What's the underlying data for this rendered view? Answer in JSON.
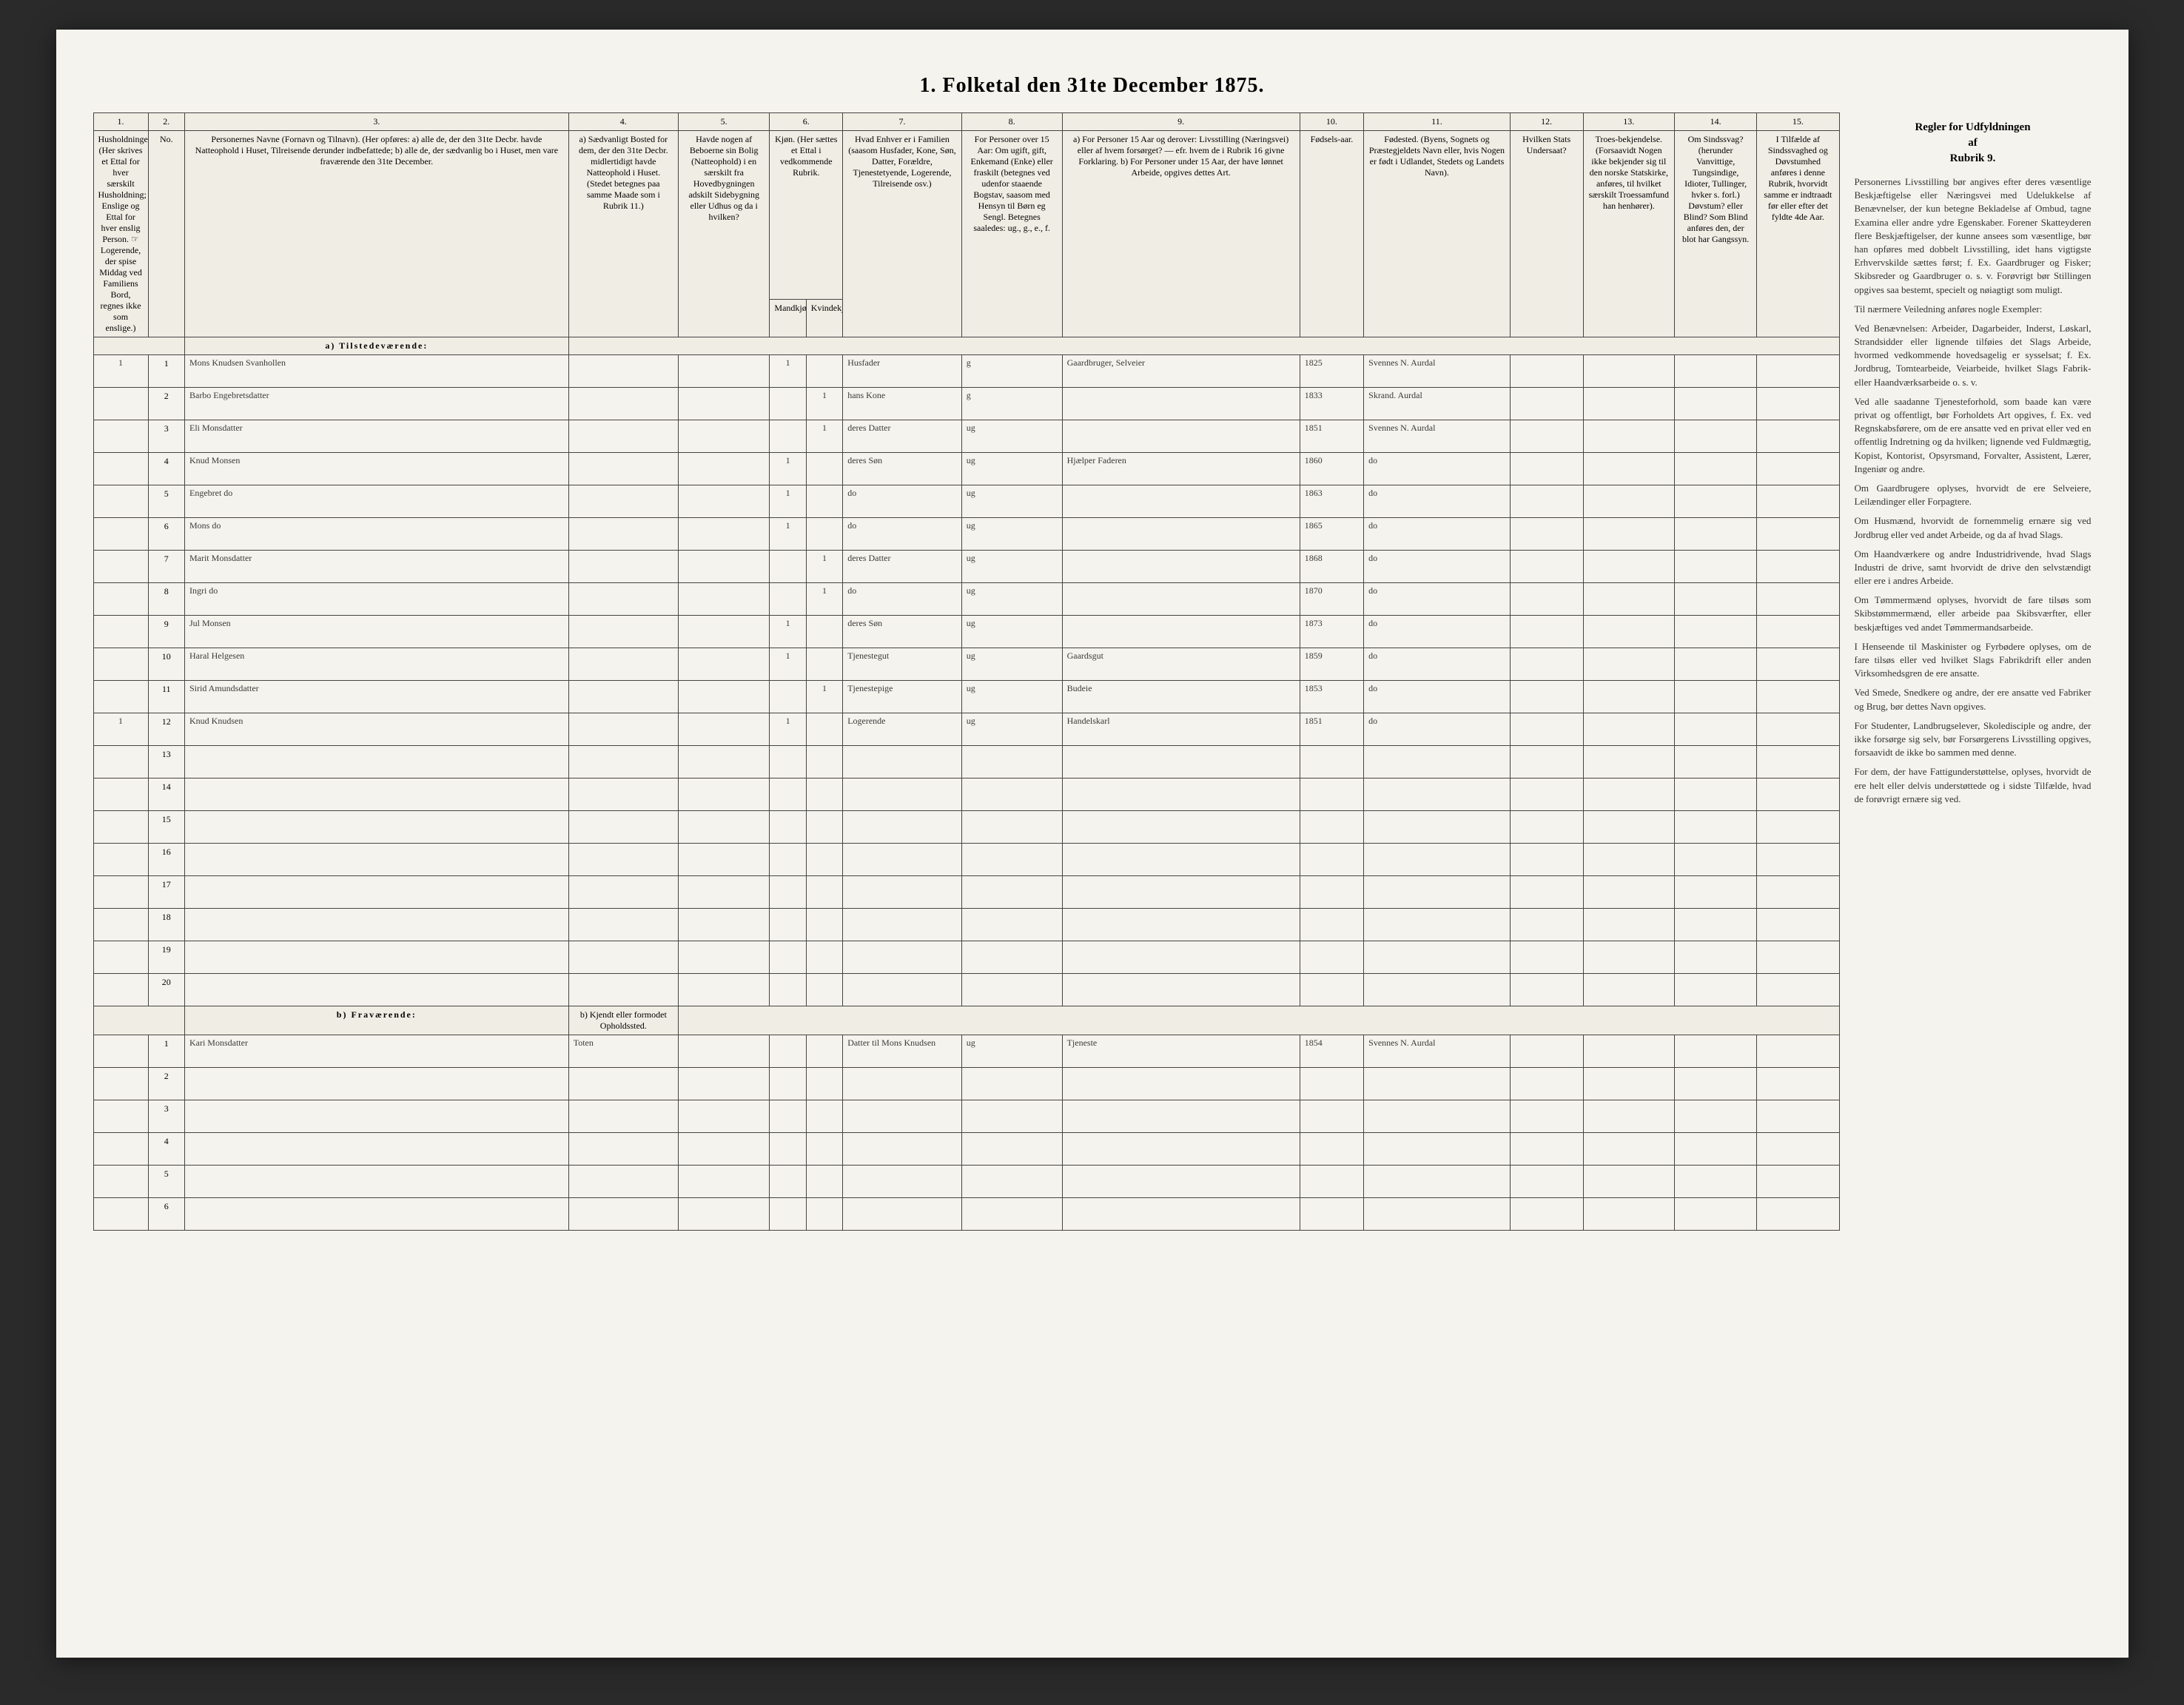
{
  "title": "1. Folketal den 31te December 1875.",
  "columns_num": [
    "1.",
    "2.",
    "3.",
    "4.",
    "5.",
    "6.",
    "7.",
    "8.",
    "9.",
    "10.",
    "11.",
    "12.",
    "13.",
    "14.",
    "15."
  ],
  "headers": {
    "c1": "Husholdninger.\n(Her skrives et Ettal for hver særskilt Husholdning; Enslige og Ettal for hver enslig Person.\n☞ Logerende, der spise Middag ved Familiens Bord, regnes ikke som enslige.)",
    "c2": "No.",
    "c3": "Personernes Navne (Fornavn og Tilnavn).\n(Her opføres:\na) alle de, der den 31te Decbr. havde Natteophold i Huset, Tilreisende derunder indbefattede;\nb) alle de, der sædvanlig bo i Huset, men vare fraværende den 31te December.",
    "c4": "a) Sædvanligt Bosted for dem, der den 31te Decbr. midlertidigt havde Natteophold i Huset. (Stedet betegnes paa samme Maade som i Rubrik 11.)",
    "c5": "Havde nogen af Beboerne sin Bolig (Natteophold) i en særskilt fra Hovedbygningen adskilt Sidebygning eller Udhus og da i hvilken?",
    "c6": "Kjøn. (Her sættes et Ettal i vedkommende Rubrik.",
    "c6a": "Mandkjøn.",
    "c6b": "Kvindekjøn.",
    "c7": "Hvad Enhver er i Familien\n(saasom Husfader, Kone, Søn, Datter, Forældre, Tjenestetyende, Logerende, Tilreisende osv.)",
    "c8": "For Personer over 15 Aar: Om ugift, gift, Enkemand (Enke) eller fraskilt (betegnes ved udenfor staaende Bogstav, saasom med Hensyn til Børn eg Sengl.\nBetegnes saaledes: ug., g., e., f.",
    "c9": "a) For Personer 15 Aar og derover: Livsstilling (Næringsvei) eller af hvem forsørget? — efr. hvem de i Rubrik 16 givne Forklaring.\nb) For Personer under 15 Aar, der have lønnet Arbeide, opgives dettes Art.",
    "c10": "Fødsels-aar.",
    "c11": "Fødested.\n(Byens, Sognets og Præstegjeldets Navn eller, hvis Nogen er født i Udlandet, Stedets og Landets Navn).",
    "c12": "Hvilken Stats Undersaat?",
    "c13": "Troes-bekjendelse.\n(Forsaavidt Nogen ikke bekjender sig til den norske Statskirke, anføres, til hvilket særskilt Troessamfund han henhører).",
    "c14": "Om Sindssvag? (herunder Vanvittige, Tungsindige, Idioter, Tullinger, hvker s. forl.) Døvstum? eller Blind? Som Blind anføres den, der blot har Gangssyn.",
    "c15": "I Tilfælde af Sindssvaghed og Døvstumhed anføres i denne Rubrik, hvorvidt samme er indtraadt før eller efter det fyldte 4de Aar."
  },
  "sidebar": {
    "title": "Regler for Udfyldningen\naf\nRubrik 9.",
    "paragraphs": [
      "Personernes Livsstilling bør angives efter deres væsentlige Beskjæftigelse eller Næringsvei med Udelukkelse af Benævnelser, der kun betegne Bekladelse af Ombud, tagne Examina eller andre ydre Egenskaber. Forener Skatteyderen flere Beskjæftigelser, der kunne ansees som væsentlige, bør han opføres med dobbelt Livsstilling, idet hans vigtigste Erhvervskilde sættes først; f. Ex. Gaardbruger og Fisker; Skibsreder og Gaardbruger o. s. v. Forøvrigt bør Stillingen opgives saa bestemt, specielt og nøiagtigt som muligt.",
      "Til nærmere Veiledning anføres nogle Exempler:",
      "Ved Benævnelsen: Arbeider, Dagarbeider, Inderst, Løskarl, Strandsidder eller lignende tilføies det Slags Arbeide, hvormed vedkommende hovedsagelig er sysselsat; f. Ex. Jordbrug, Tomtearbeide, Veiarbeide, hvilket Slags Fabrik- eller Haandværksarbeide o. s. v.",
      "Ved alle saadanne Tjenesteforhold, som baade kan være privat og offentligt, bør Forholdets Art opgives, f. Ex. ved Regnskabsførere, om de ere ansatte ved en privat eller ved en offentlig Indretning og da hvilken; lignende ved Fuldmægtig, Kopist, Kontorist, Opsyrsmand, Forvalter, Assistent, Lærer, Ingeniør og andre.",
      "Om Gaardbrugere oplyses, hvorvidt de ere Selveiere, Leilændinger eller Forpagtere.",
      "Om Husmænd, hvorvidt de fornemmelig ernære sig ved Jordbrug eller ved andet Arbeide, og da af hvad Slags.",
      "Om Haandværkere og andre Industridrivende, hvad Slags Industri de drive, samt hvorvidt de drive den selvstændigt eller ere i andres Arbeide.",
      "Om Tømmermænd oplyses, hvorvidt de fare tilsøs som Skibstømmermænd, eller arbeide paa Skibsværfter, eller beskjæftiges ved andet Tømmermandsarbeide.",
      "I Henseende til Maskinister og Fyrbødere oplyses, om de fare tilsøs eller ved hvilket Slags Fabrikdrift eller anden Virksomhedsgren de ere ansatte.",
      "Ved Smede, Snedkere og andre, der ere ansatte ved Fabriker og Brug, bør dettes Navn opgives.",
      "For Studenter, Landbrugselever, Skoledisciple og andre, der ikke forsørge sig selv, bør Forsørgerens Livsstilling opgives, forsaavidt de ikke bo sammen med denne.",
      "For dem, der have Fattigunderstøttelse, oplyses, hvorvidt de ere helt eller delvis understøttede og i sidste Tilfælde, hvad de forøvrigt ernære sig ved."
    ]
  },
  "section_a": "a) Tilstedeværende:",
  "section_b": "b) Fraværende:",
  "section_b_c4": "b) Kjendt eller formodet Opholdssted.",
  "rows_a": [
    {
      "hh": "1",
      "no": "1",
      "name": "Mons Knudsen Svanhollen",
      "c4": "",
      "c5": "",
      "m": "1",
      "k": "",
      "rel": "Husfader",
      "civ": "g",
      "occ": "Gaardbruger, Selveier",
      "year": "1825",
      "birth": "Svennes N. Aurdal"
    },
    {
      "hh": "",
      "no": "2",
      "name": "Barbo Engebretsdatter",
      "c4": "",
      "c5": "",
      "m": "",
      "k": "1",
      "rel": "hans Kone",
      "civ": "g",
      "occ": "",
      "year": "1833",
      "birth": "Skrand. Aurdal"
    },
    {
      "hh": "",
      "no": "3",
      "name": "Eli Monsdatter",
      "c4": "",
      "c5": "",
      "m": "",
      "k": "1",
      "rel": "deres Datter",
      "civ": "ug",
      "occ": "",
      "year": "1851",
      "birth": "Svennes N. Aurdal"
    },
    {
      "hh": "",
      "no": "4",
      "name": "Knud Monsen",
      "c4": "",
      "c5": "",
      "m": "1",
      "k": "",
      "rel": "deres Søn",
      "civ": "ug",
      "occ": "Hjælper Faderen",
      "year": "1860",
      "birth": "do"
    },
    {
      "hh": "",
      "no": "5",
      "name": "Engebret do",
      "c4": "",
      "c5": "",
      "m": "1",
      "k": "",
      "rel": "do",
      "civ": "ug",
      "occ": "",
      "year": "1863",
      "birth": "do"
    },
    {
      "hh": "",
      "no": "6",
      "name": "Mons do",
      "c4": "",
      "c5": "",
      "m": "1",
      "k": "",
      "rel": "do",
      "civ": "ug",
      "occ": "",
      "year": "1865",
      "birth": "do"
    },
    {
      "hh": "",
      "no": "7",
      "name": "Marit Monsdatter",
      "c4": "",
      "c5": "",
      "m": "",
      "k": "1",
      "rel": "deres Datter",
      "civ": "ug",
      "occ": "",
      "year": "1868",
      "birth": "do"
    },
    {
      "hh": "",
      "no": "8",
      "name": "Ingri do",
      "c4": "",
      "c5": "",
      "m": "",
      "k": "1",
      "rel": "do",
      "civ": "ug",
      "occ": "",
      "year": "1870",
      "birth": "do"
    },
    {
      "hh": "",
      "no": "9",
      "name": "Jul Monsen",
      "c4": "",
      "c5": "",
      "m": "1",
      "k": "",
      "rel": "deres Søn",
      "civ": "ug",
      "occ": "",
      "year": "1873",
      "birth": "do"
    },
    {
      "hh": "",
      "no": "10",
      "name": "Haral Helgesen",
      "c4": "",
      "c5": "",
      "m": "1",
      "k": "",
      "rel": "Tjenestegut",
      "civ": "ug",
      "occ": "Gaardsgut",
      "year": "1859",
      "birth": "do"
    },
    {
      "hh": "",
      "no": "11",
      "name": "Sirid Amundsdatter",
      "c4": "",
      "c5": "",
      "m": "",
      "k": "1",
      "rel": "Tjenestepige",
      "civ": "ug",
      "occ": "Budeie",
      "year": "1853",
      "birth": "do"
    },
    {
      "hh": "1",
      "no": "12",
      "name": "Knud Knudsen",
      "c4": "",
      "c5": "",
      "m": "1",
      "k": "",
      "rel": "Logerende",
      "civ": "ug",
      "occ": "Handelskarl",
      "year": "1851",
      "birth": "do"
    }
  ],
  "empty_a": [
    "13",
    "14",
    "15",
    "16",
    "17",
    "18",
    "19",
    "20"
  ],
  "rows_b": [
    {
      "hh": "",
      "no": "1",
      "name": "Kari Monsdatter",
      "c4": "Toten",
      "c5": "",
      "m": "",
      "k": "",
      "rel": "Datter til Mons Knudsen",
      "civ": "ug",
      "occ": "Tjeneste",
      "year": "1854",
      "birth": "Svennes N. Aurdal"
    }
  ],
  "empty_b": [
    "2",
    "3",
    "4",
    "5",
    "6"
  ]
}
